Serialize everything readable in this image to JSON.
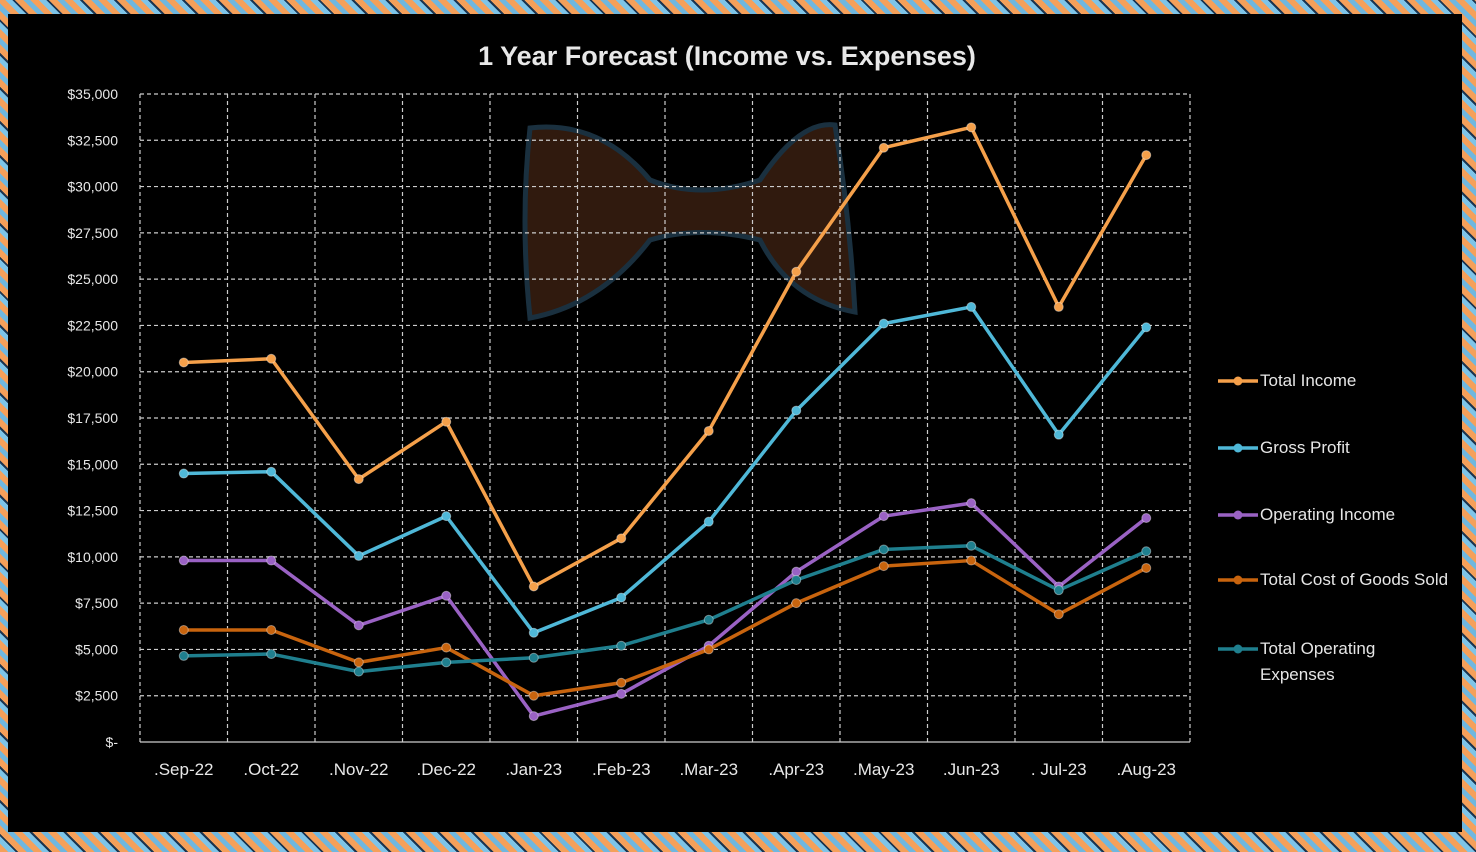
{
  "chart_data": {
    "type": "line",
    "title": "1 Year Forecast (Income vs. Expenses)",
    "xlabel": "",
    "ylabel": "",
    "ylim": [
      0,
      35000
    ],
    "grid": true,
    "legend_position": "right",
    "categories": [
      ".Sep-22",
      ".Oct-22",
      ".Nov-22",
      ".Dec-22",
      ".Jan-23",
      ".Feb-23",
      ".Mar-23",
      ".Apr-23",
      ".May-23",
      ".Jun-23",
      ". Jul-23",
      ".Aug-23"
    ],
    "y_ticks": [
      {
        "value": 0,
        "label": "$-"
      },
      {
        "value": 2500,
        "label": "$2,500"
      },
      {
        "value": 5000,
        "label": "$5,000"
      },
      {
        "value": 7500,
        "label": "$7,500"
      },
      {
        "value": 10000,
        "label": "$10,000"
      },
      {
        "value": 12500,
        "label": "$12,500"
      },
      {
        "value": 15000,
        "label": "$15,000"
      },
      {
        "value": 17500,
        "label": "$17,500"
      },
      {
        "value": 20000,
        "label": "$20,000"
      },
      {
        "value": 22500,
        "label": "$22,500"
      },
      {
        "value": 25000,
        "label": "$25,000"
      },
      {
        "value": 27500,
        "label": "$27,500"
      },
      {
        "value": 30000,
        "label": "$30,000"
      },
      {
        "value": 32500,
        "label": "$32,500"
      },
      {
        "value": 35000,
        "label": "$35,000"
      }
    ],
    "series": [
      {
        "name": "Total Income",
        "color": "#f5a04a",
        "values": [
          20500,
          20700,
          14200,
          17300,
          8400,
          11000,
          16800,
          25400,
          32100,
          33200,
          23500,
          31700
        ]
      },
      {
        "name": "Gross Profit",
        "color": "#4fb8d8",
        "values": [
          14500,
          14600,
          10050,
          12200,
          5900,
          7800,
          11900,
          17900,
          22600,
          23500,
          16600,
          22400
        ]
      },
      {
        "name": "Operating Income",
        "color": "#9a62c4",
        "values": [
          9800,
          9800,
          6300,
          7900,
          1400,
          2600,
          5200,
          9200,
          12200,
          12900,
          8400,
          12100
        ]
      },
      {
        "name": "Total Cost of Goods Sold",
        "color": "#c8640e",
        "values": [
          6050,
          6050,
          4300,
          5100,
          2500,
          3200,
          5000,
          7500,
          9500,
          9800,
          6900,
          9400
        ]
      },
      {
        "name": "Total Operating Expenses",
        "color": "#1f7f8e",
        "values": [
          4650,
          4750,
          3800,
          4300,
          4550,
          5200,
          6600,
          8750,
          10400,
          10600,
          8200,
          10300
        ]
      }
    ]
  }
}
